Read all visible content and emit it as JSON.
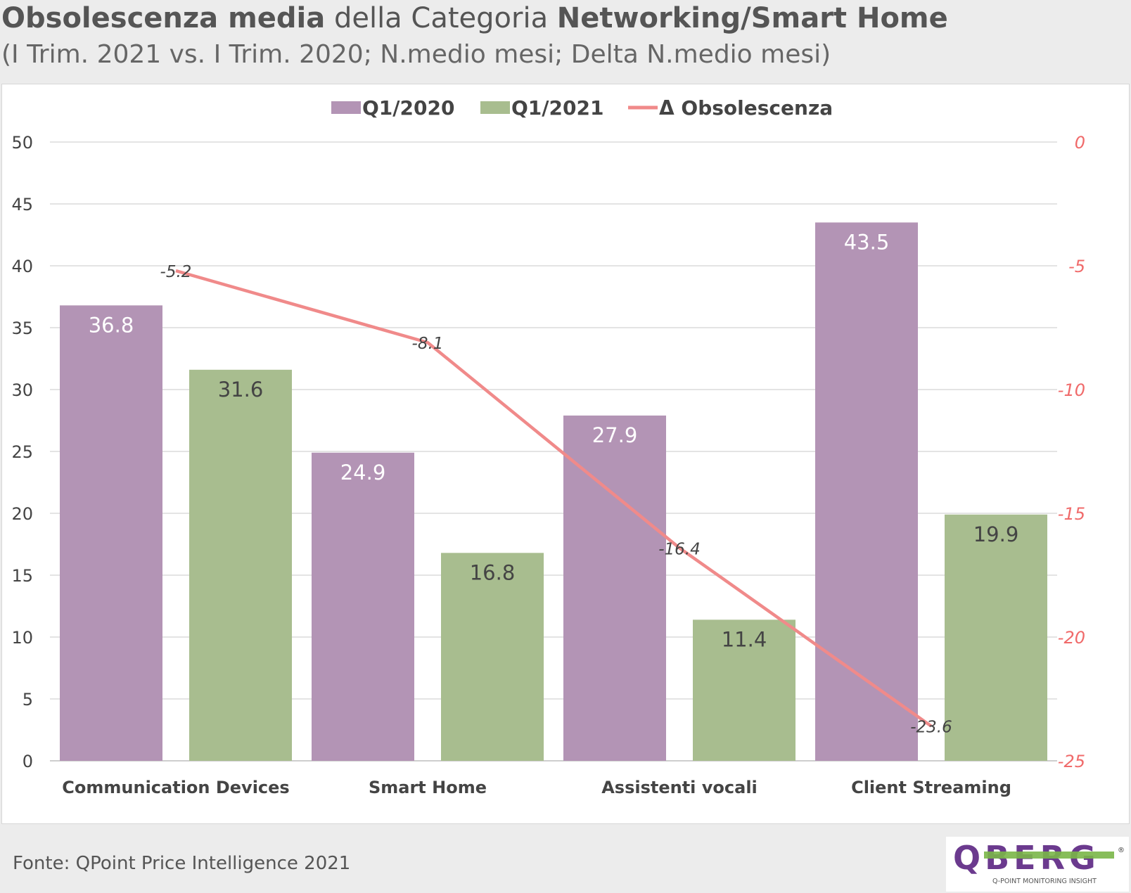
{
  "header": {
    "title_part1": "Obsolescenza media",
    "title_part2": "della Categoria",
    "title_part3": "Networking/Smart Home",
    "subtitle": "(I Trim. 2021 vs. I Trim. 2020; N.medio mesi; Delta N.medio mesi)"
  },
  "footer": {
    "source": "Fonte: QPoint Price Intelligence 2021"
  },
  "logo": {
    "brand": "QBERG",
    "tagline": "Q-POINT MONITORING INSIGHT",
    "mark": "®"
  },
  "colors": {
    "q1_2020": "#b394b5",
    "q1_2021": "#a8bd8f",
    "delta_line": "#f08a8a",
    "right_axis": "#f06a6a",
    "logo_purple": "#6b3a8e",
    "logo_green": "#7ab648"
  },
  "chart_data": {
    "type": "bar",
    "categories": [
      "Communication Devices",
      "Smart Home",
      "Assistenti vocali",
      "Client Streaming"
    ],
    "series": [
      {
        "name": "Q1/2020",
        "type": "bar",
        "axis": "left",
        "values": [
          36.8,
          24.9,
          27.9,
          43.5
        ]
      },
      {
        "name": "Q1/2021",
        "type": "bar",
        "axis": "left",
        "values": [
          31.6,
          16.8,
          11.4,
          19.9
        ]
      },
      {
        "name": "Δ Obsolescenza",
        "type": "line",
        "axis": "right",
        "values": [
          -5.2,
          -8.1,
          -16.4,
          -23.6
        ]
      }
    ],
    "left_axis": {
      "ylim": [
        0,
        50
      ],
      "ticks": [
        "0",
        "5",
        "10",
        "15",
        "20",
        "25",
        "30",
        "35",
        "40",
        "45",
        "50"
      ]
    },
    "right_axis": {
      "ylim": [
        -25,
        0
      ],
      "ticks": [
        "-25",
        "-20",
        "-15",
        "-10",
        "-5",
        "0"
      ]
    },
    "grid": true,
    "legend_position": "top-center",
    "data_labels": true
  }
}
